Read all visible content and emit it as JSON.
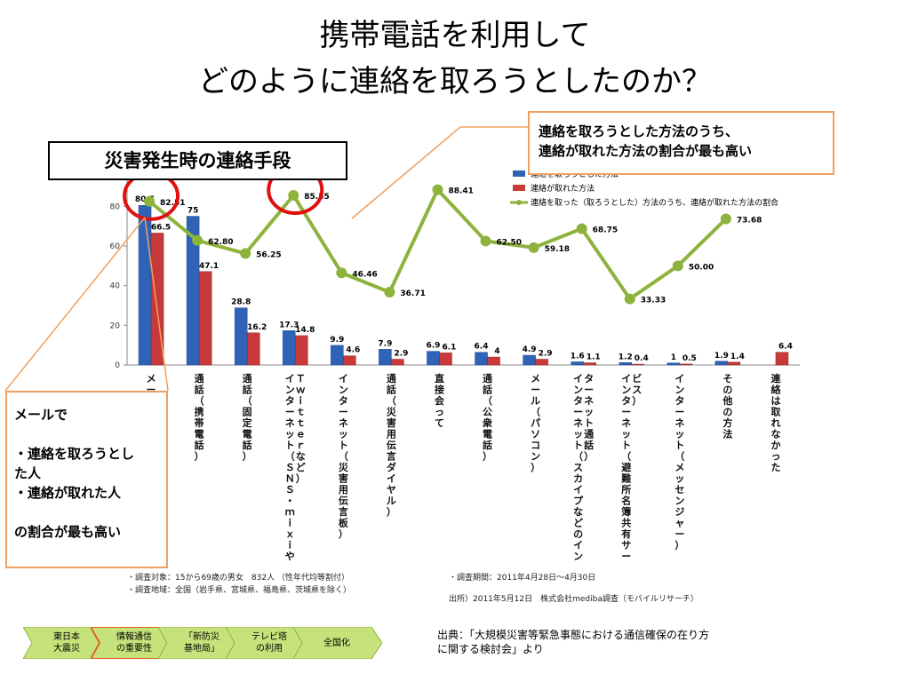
{
  "slide": {
    "title_line1": "携帯電話を利用して",
    "title_line2": "どのように連絡を取ろうとしたのか？",
    "tag": "災害発生時の連絡手段",
    "note_top": [
      "連絡を取ろうとした方法のうち、",
      "連絡が取れた方法の割合が最も高い"
    ],
    "note_left": [
      "メールで",
      "",
      "・連絡を取ろうとし",
      "た人",
      "・連絡が取れた人",
      "",
      "の割合が最も高い"
    ],
    "footnote_target": "・調査対象：15から69歳の男女　832人 （性年代均等割付）",
    "footnote_area": "・調査地域：全国（岩手県、宮城県、福島県、茨城県を除く）",
    "footnote_period": "・調査期間：2011年4月28日～4月30日",
    "footnote_publisher": "出所）2011年5月12日　株式会社mediba調査（モバイルリサーチ）",
    "source_line1": "出典：「大規模災害等緊急事態における通信確保の在り方",
    "source_line2": "に関する検討会」より",
    "nav": [
      {
        "label_line1": "東日本",
        "label_line2": "大震災"
      },
      {
        "label_line1": "情報通信",
        "label_line2": "の重要性"
      },
      {
        "label_line1": "「新防災",
        "label_line2": "基地局」"
      },
      {
        "label_line1": "テレビ塔",
        "label_line2": "の利用"
      },
      {
        "label_line1": "全国化",
        "label_line2": ""
      }
    ]
  },
  "chart_data": {
    "type": "bar",
    "categories": [
      "メール（携帯電話）",
      "通話（携帯電話）",
      "通話（固定電話）",
      "インターネット（SNS・mixiやTwitterなど）",
      "インターネット（災害用伝言板）",
      "通話（災害用伝言ダイヤル）",
      "直接会って",
      "通話（公衆電話）",
      "メール（パソコン）",
      "インターネット（スカイプなどのインターネット通話）",
      "インターネット（避難所名簿共有サービス）",
      "インターネット（メッセンジャー）",
      "その他の方法",
      "連絡は取れなかった"
    ],
    "category_labels_shown": [
      "メール",
      "通話（携帯電話）",
      "通話（固定電話）",
      "インターネット（ＳＮＳ・ｍｉｘｉやＴｗｉｔｔｅｒなど）",
      "インターネット（災害用伝言板）",
      "通話（災害用伝言ダイヤル）",
      "直接会って",
      "通話（公衆電話）",
      "メール（パソコン）",
      "インターネット（スカイプなどのインターネット通話）",
      "インターネット（避難所名簿共有サービス）",
      "インターネット（メッセンジャー）",
      "その他の方法",
      "連絡は取れなかった"
    ],
    "series": [
      {
        "name": "連絡を取ろうとした方法",
        "kind": "bar",
        "color": "#2f63b8",
        "values": [
          80.5,
          75,
          28.8,
          17.3,
          9.9,
          7.9,
          6.9,
          6.4,
          4.9,
          1.6,
          1.2,
          1,
          1.9,
          null
        ],
        "labels": [
          "80.5",
          "75",
          "28.8",
          "17.3",
          "9.9",
          "7.9",
          "6.9",
          "6.4",
          "4.9",
          "1.6",
          "1.2",
          "1",
          "1.9",
          ""
        ]
      },
      {
        "name": "連絡が取れた方法",
        "kind": "bar",
        "color": "#c8393a",
        "values": [
          66.5,
          47.1,
          16.2,
          14.8,
          4.6,
          2.9,
          6.1,
          4,
          2.9,
          1.1,
          0.4,
          0.5,
          1.4,
          6.4
        ],
        "labels": [
          "66.5",
          "47.1",
          "16.2",
          "14.8",
          "4.6",
          "2.9",
          "6.1",
          "4",
          "2.9",
          "1.1",
          "0.4",
          "0.5",
          "1.4",
          "6.4"
        ]
      },
      {
        "name": "連絡を取った（取ろうとした）方法のうち、連絡が取れた方法の割合",
        "kind": "line",
        "color": "#8db33d",
        "values": [
          82.51,
          62.8,
          56.25,
          85.55,
          46.46,
          36.71,
          88.41,
          62.5,
          59.18,
          68.75,
          33.33,
          50.0,
          73.68,
          null
        ],
        "labels": [
          "82.51",
          "62.80",
          "56.25",
          "85.55",
          "46.46",
          "36.71",
          "88.41",
          "62.50",
          "59.18",
          "68.75",
          "33.33",
          "50.00",
          "73.68",
          ""
        ]
      }
    ],
    "yticks": [
      0,
      20,
      40,
      60,
      80
    ],
    "ylim": [
      0,
      90
    ],
    "grid": false,
    "legend_position": "top-right",
    "highlight_circles": [
      "メール（携帯電話）",
      "インターネット（SNS・mixiやTwitterなど）"
    ]
  }
}
